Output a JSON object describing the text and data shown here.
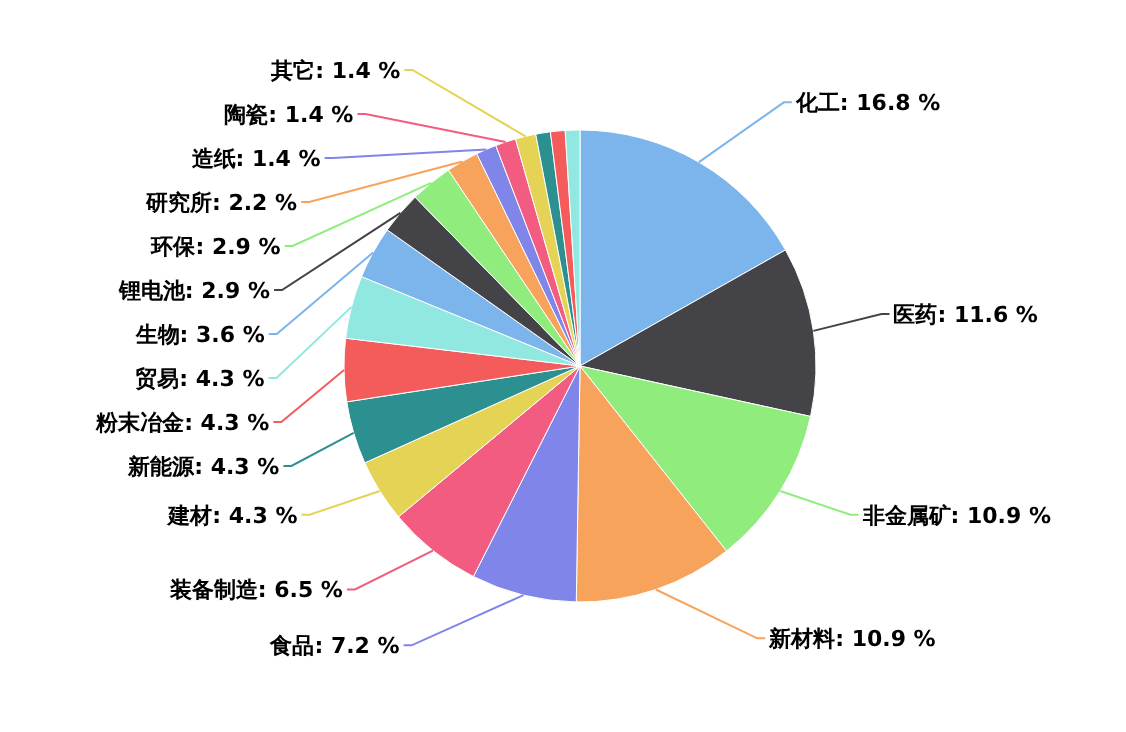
{
  "chart_data": {
    "type": "pie",
    "categories": [
      "化工",
      "医药",
      "非金属矿",
      "新材料",
      "食品",
      "装备制造",
      "建材",
      "新能源",
      "粉末冶金",
      "贸易",
      "生物",
      "锂电池",
      "环保",
      "研究所",
      "造纸",
      "陶瓷",
      "其它",
      null,
      null,
      null
    ],
    "values": [
      16.8,
      11.6,
      10.9,
      10.9,
      7.2,
      6.5,
      4.3,
      4.3,
      4.3,
      4.3,
      3.6,
      2.9,
      2.9,
      2.2,
      1.4,
      1.4,
      1.4,
      1.0,
      1.0,
      1.0
    ],
    "value_labels": [
      ": 16.8 %",
      ": 11.6 %",
      ": 10.9 %",
      ": 10.9 %",
      ": 7.2 %",
      ": 6.5 %",
      ": 4.3 %",
      ": 4.3 %",
      ": 4.3 %",
      ": 4.3 %",
      ": 3.6 %",
      ": 2.9 %",
      ": 2.9 %",
      ": 2.2 %",
      ": 1.4 %",
      ": 1.4 %",
      ": 1.4 %",
      null,
      null,
      null
    ],
    "colors": [
      "#7cb5ec",
      "#434348",
      "#90ed7d",
      "#f7a35c",
      "#8085e9",
      "#f15c80",
      "#e4d354",
      "#2b908f",
      "#f45b5b",
      "#91e8e1",
      "#7cb5ec",
      "#434348",
      "#90ed7d",
      "#f7a35c",
      "#8085e9",
      "#f15c80",
      "#e4d354",
      "#2b908f",
      "#f45b5b",
      "#91e8e1"
    ]
  }
}
